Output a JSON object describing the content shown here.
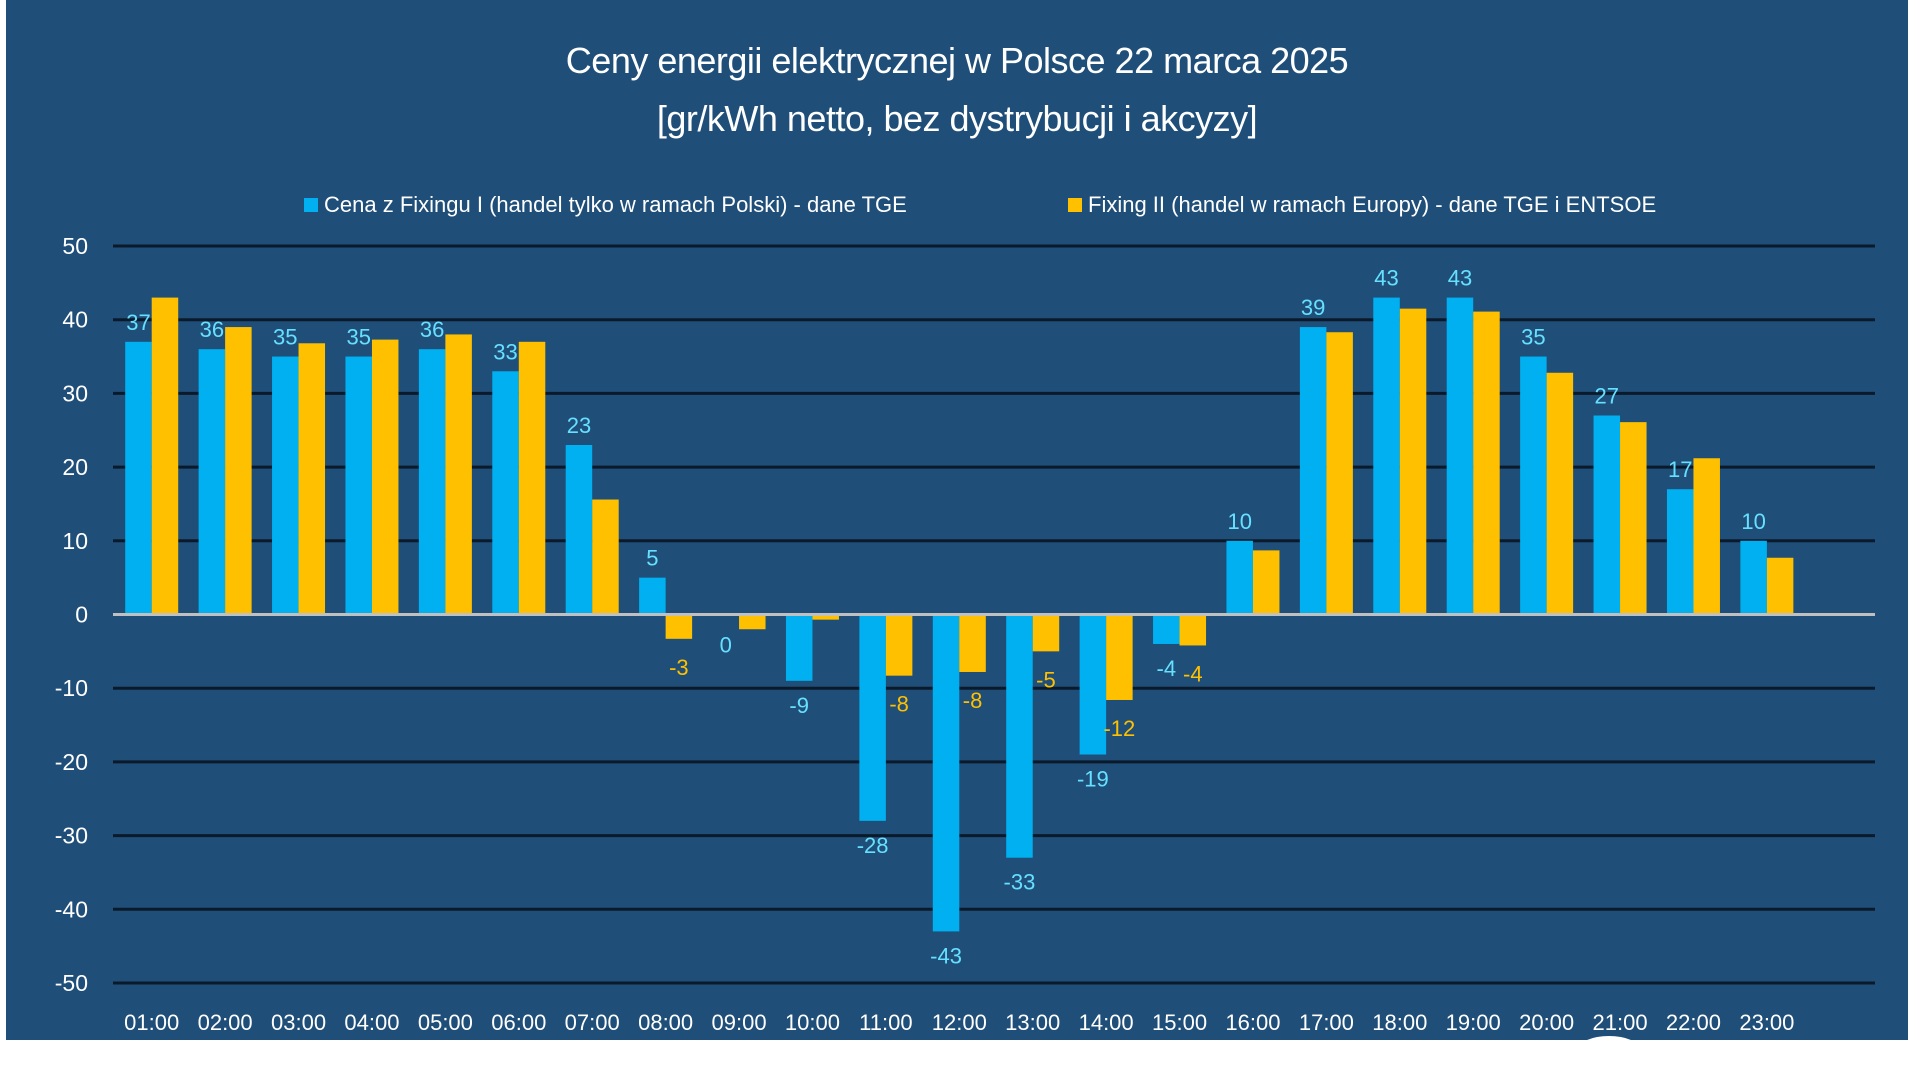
{
  "chart_data": {
    "type": "bar",
    "title": "Ceny energii elektrycznej w Polsce 22 marca 2025",
    "subtitle": "[gr/kWh netto, bez dystrybucji i akcyzy]",
    "xlabel": "",
    "ylabel": "",
    "ylim": [
      -50,
      50
    ],
    "yticks": [
      50,
      40,
      30,
      20,
      10,
      0,
      -10,
      -20,
      -30,
      -40,
      -50
    ],
    "grid": true,
    "legend_position": "top-center",
    "categories": [
      "01:00",
      "02:00",
      "03:00",
      "04:00",
      "05:00",
      "06:00",
      "07:00",
      "08:00",
      "09:00",
      "10:00",
      "11:00",
      "12:00",
      "13:00",
      "14:00",
      "15:00",
      "16:00",
      "17:00",
      "18:00",
      "19:00",
      "20:00",
      "21:00",
      "22:00",
      "23:00"
    ],
    "series": [
      {
        "name": "Cena z Fixingu I (handel tylko w ramach Polski) - dane TGE",
        "color": "#00b0f0",
        "label_color": "#66e0ff",
        "values": [
          37,
          36,
          35,
          35,
          36,
          33,
          23,
          5,
          0,
          -9,
          -28,
          -43,
          -33,
          -19,
          -4,
          10,
          39,
          43,
          43,
          35,
          27,
          17,
          10
        ],
        "labels": [
          "37",
          "36",
          "35",
          "35",
          "36",
          "33",
          "23",
          "5",
          "0",
          "-9",
          "-28",
          "-43",
          "-33",
          "-19",
          "-4",
          "10",
          "39",
          "43",
          "43",
          "35",
          "27",
          "17",
          "10"
        ]
      },
      {
        "name": "Fixing II (handel w ramach Europy) - dane TGE i ENTSOE",
        "color": "#ffc000",
        "label_color": "#ffc000",
        "values": [
          43,
          39,
          36.8,
          37.3,
          38,
          37,
          15.6,
          -3.3,
          -2,
          -0.7,
          -8.3,
          -7.8,
          -5,
          -11.6,
          -4.2,
          8.7,
          38.3,
          41.5,
          41.1,
          32.8,
          26.1,
          21.2,
          7.7
        ],
        "labels": [
          null,
          null,
          null,
          null,
          null,
          null,
          null,
          "-3",
          null,
          null,
          "-8",
          "-8",
          "-5",
          "-12",
          "-4",
          null,
          null,
          null,
          null,
          null,
          null,
          null,
          null
        ]
      }
    ]
  },
  "colors": {
    "background": "#1f4e79",
    "gridline": "#0b1a2a",
    "zero_line": "#c0c0c0",
    "text": "#ffffff"
  }
}
